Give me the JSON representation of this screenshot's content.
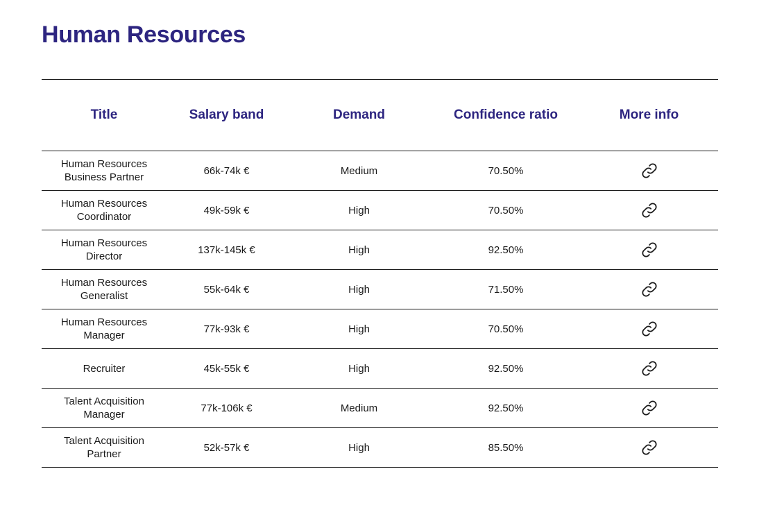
{
  "page": {
    "title": "Human Resources"
  },
  "table": {
    "headers": {
      "title": "Title",
      "salary": "Salary band",
      "demand": "Demand",
      "confidence": "Confidence ratio",
      "more_info": "More info"
    },
    "rows": [
      {
        "title": "Human Resources Business Partner",
        "salary": "66k-74k €",
        "demand": "Medium",
        "confidence": "70.50%",
        "more_info_icon": "link-icon"
      },
      {
        "title": "Human Resources Coordinator",
        "salary": "49k-59k €",
        "demand": "High",
        "confidence": "70.50%",
        "more_info_icon": "link-icon"
      },
      {
        "title": "Human Resources Director",
        "salary": "137k-145k €",
        "demand": "High",
        "confidence": "92.50%",
        "more_info_icon": "link-icon"
      },
      {
        "title": "Human Resources Generalist",
        "salary": "55k-64k €",
        "demand": "High",
        "confidence": "71.50%",
        "more_info_icon": "link-icon"
      },
      {
        "title": "Human Resources Manager",
        "salary": "77k-93k €",
        "demand": "High",
        "confidence": "70.50%",
        "more_info_icon": "link-icon"
      },
      {
        "title": "Recruiter",
        "salary": "45k-55k €",
        "demand": "High",
        "confidence": "92.50%",
        "more_info_icon": "link-icon"
      },
      {
        "title": "Talent Acquisition Manager",
        "salary": "77k-106k €",
        "demand": "Medium",
        "confidence": "92.50%",
        "more_info_icon": "link-icon"
      },
      {
        "title": "Talent Acquisition Partner",
        "salary": "52k-57k €",
        "demand": "High",
        "confidence": "85.50%",
        "more_info_icon": "link-icon"
      }
    ]
  },
  "colors": {
    "accent": "#2d2580",
    "text": "#1a1a1a",
    "rule": "#1a1a1a",
    "background": "#ffffff"
  }
}
